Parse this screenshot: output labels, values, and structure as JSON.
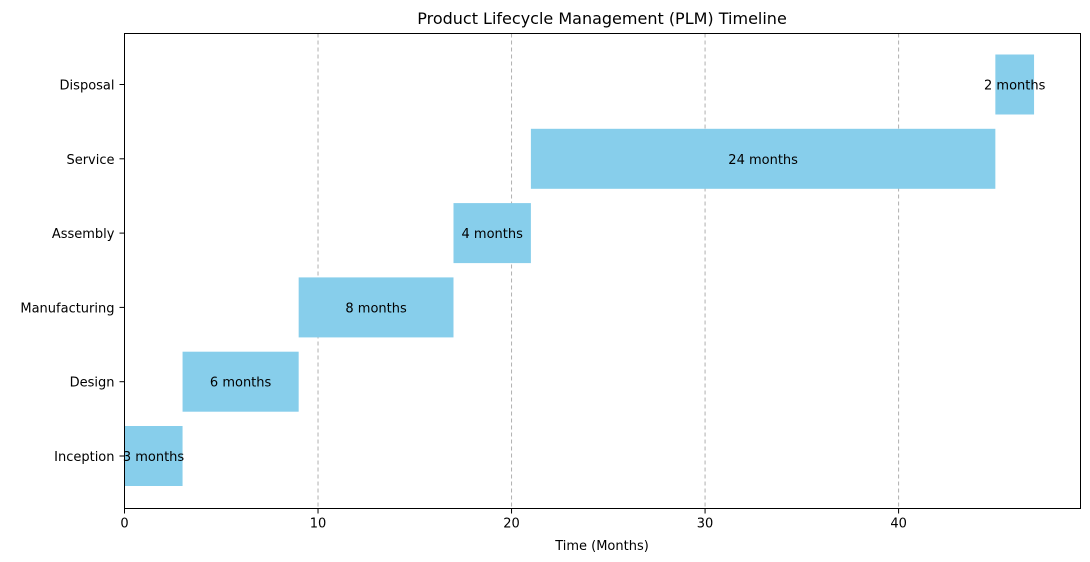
{
  "chart_data": {
    "type": "bar",
    "orientation": "horizontal-gantt",
    "title": "Product Lifecycle Management (PLM) Timeline",
    "xlabel": "Time (Months)",
    "ylabel": "",
    "xlim": [
      0,
      49.4
    ],
    "xticks": [
      0,
      10,
      20,
      30,
      40
    ],
    "grid": "x-axis dashed",
    "categories": [
      "Inception",
      "Design",
      "Manufacturing",
      "Assembly",
      "Service",
      "Disposal"
    ],
    "tasks": [
      {
        "label": "Inception",
        "start": 0,
        "duration": 3,
        "text": "3 months"
      },
      {
        "label": "Design",
        "start": 3,
        "duration": 6,
        "text": "6 months"
      },
      {
        "label": "Manufacturing",
        "start": 9,
        "duration": 8,
        "text": "8 months"
      },
      {
        "label": "Assembly",
        "start": 17,
        "duration": 4,
        "text": "4 months"
      },
      {
        "label": "Service",
        "start": 21,
        "duration": 24,
        "text": "24 months"
      },
      {
        "label": "Disposal",
        "start": 45,
        "duration": 2,
        "text": "2 months"
      }
    ],
    "colors": {
      "bar": "#87ceeb",
      "grid": "#b0b0b0",
      "axis": "#000000"
    }
  }
}
